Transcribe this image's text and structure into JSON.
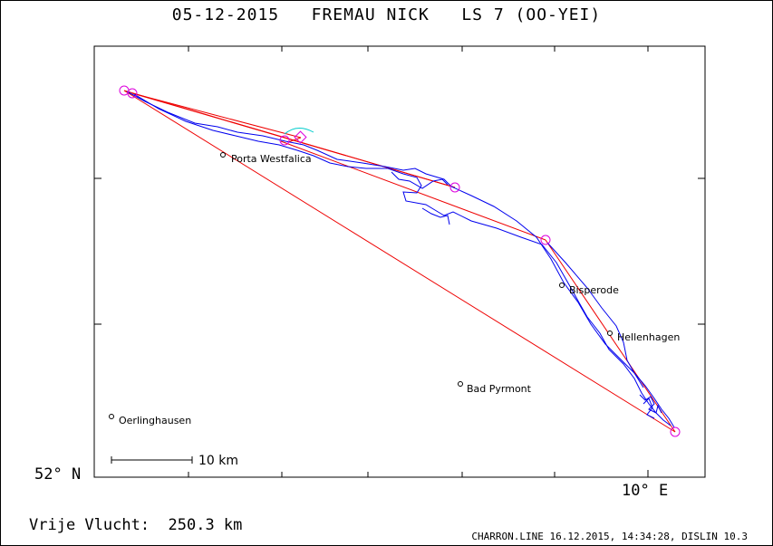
{
  "header": {
    "title": "05-12-2015   FREMAU NICK   LS 7 (OO-YEI)"
  },
  "axes": {
    "lat_label": "52° N",
    "lon_label": "10° E"
  },
  "scale_bar": {
    "label": "10 km"
  },
  "distance": {
    "label": "Vrije Vlucht:  250.3 km"
  },
  "footer": {
    "text": "CHARRON.LINE 16.12.2015, 14:34:28, DISLIN 10.3"
  },
  "places": [
    {
      "name": "Porta Westfalica"
    },
    {
      "name": "Bisperode"
    },
    {
      "name": "Hellenhagen"
    },
    {
      "name": "Bad Pyrmont"
    },
    {
      "name": "Oerlinghausen"
    }
  ],
  "colors": {
    "track": "#0000ee",
    "task_line": "#ee0000",
    "turnpoint": "#dd00dd",
    "start_arc": "#00cccc"
  }
}
